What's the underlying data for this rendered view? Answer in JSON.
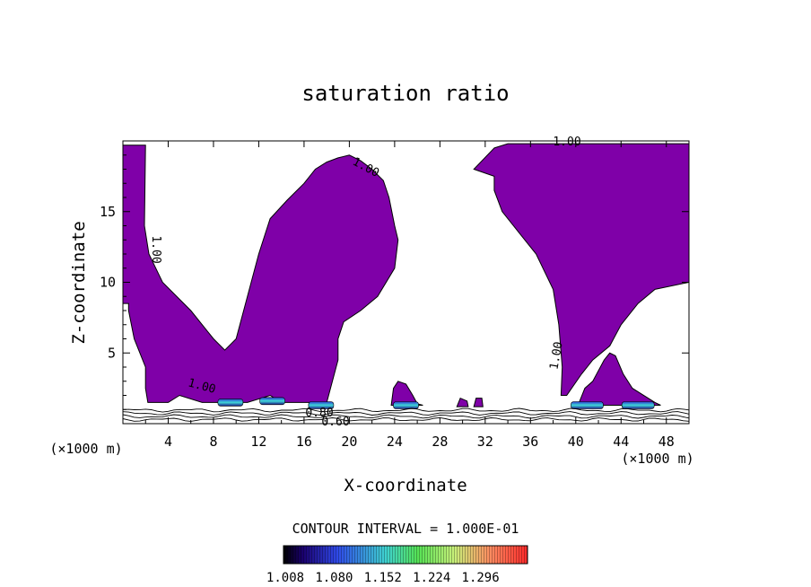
{
  "chart_data": {
    "type": "contour",
    "title": "saturation ratio",
    "xlabel": "X-coordinate",
    "ylabel": "Z-coordinate",
    "x_unit": "(×1000 m)",
    "x_unit_right": "(×1000 m)",
    "xlim": [
      0,
      50
    ],
    "ylim": [
      0,
      20
    ],
    "x_ticks": [
      "4",
      "8",
      "12",
      "16",
      "20",
      "24",
      "28",
      "32",
      "36",
      "40",
      "44",
      "48"
    ],
    "y_ticks": [
      "5",
      "10",
      "15"
    ],
    "contour_labels": [
      "1.00",
      "1.00",
      "1.00",
      "1.00",
      "1.00",
      "1.00",
      "0.80",
      "0.60"
    ],
    "footer": "CONTOUR INTERVAL = 1.000E-01",
    "colorbar": {
      "ticks": [
        "1.008",
        "1.080",
        "1.152",
        "1.224",
        "1.296"
      ],
      "min": 1.008,
      "max": 1.296
    },
    "fill_color": "#7f00a8",
    "regions": [
      {
        "name": "left-cloud",
        "points": [
          [
            0,
            19.7
          ],
          [
            2,
            19.7
          ],
          [
            1.9,
            14
          ],
          [
            2.3,
            12
          ],
          [
            3.5,
            10
          ],
          [
            6,
            8
          ],
          [
            7.5,
            6.5
          ],
          [
            8,
            6
          ],
          [
            9,
            5.2
          ],
          [
            10,
            6
          ],
          [
            11,
            9
          ],
          [
            12,
            12
          ],
          [
            13,
            14.5
          ],
          [
            14.5,
            15.8
          ],
          [
            16,
            17
          ],
          [
            17,
            18
          ],
          [
            18,
            18.5
          ],
          [
            19,
            18.8
          ],
          [
            20,
            19
          ],
          [
            21,
            18.6
          ],
          [
            22,
            18
          ],
          [
            23,
            17.2
          ],
          [
            23.5,
            16
          ],
          [
            24,
            14
          ],
          [
            24.3,
            13
          ],
          [
            24,
            11
          ],
          [
            22.5,
            9
          ],
          [
            21,
            8
          ],
          [
            19.5,
            7.2
          ],
          [
            19,
            6
          ],
          [
            19,
            4.5
          ],
          [
            18.5,
            3
          ],
          [
            18,
            1.5
          ],
          [
            14,
            1.5
          ],
          [
            13,
            2
          ],
          [
            11,
            1.5
          ],
          [
            9,
            1.5
          ],
          [
            7,
            1.5
          ],
          [
            5,
            2
          ],
          [
            4,
            1.5
          ],
          [
            2.2,
            1.5
          ],
          [
            2,
            2.5
          ],
          [
            2,
            4
          ],
          [
            1,
            6
          ],
          [
            0.5,
            8
          ],
          [
            0.5,
            8.5
          ],
          [
            0,
            8.5
          ]
        ]
      },
      {
        "name": "right-cloud",
        "points": [
          [
            32.8,
            19.5
          ],
          [
            34,
            19.8
          ],
          [
            38,
            19.8
          ],
          [
            42,
            19.8
          ],
          [
            46,
            19.8
          ],
          [
            50,
            19.8
          ],
          [
            50,
            10
          ],
          [
            47,
            9.5
          ],
          [
            45.5,
            8.5
          ],
          [
            44,
            7
          ],
          [
            43,
            5.5
          ],
          [
            41.5,
            4.5
          ],
          [
            40.5,
            3.5
          ],
          [
            39.2,
            2
          ],
          [
            38.7,
            2
          ],
          [
            38.8,
            4
          ],
          [
            38.5,
            7
          ],
          [
            38,
            9.5
          ],
          [
            36.5,
            12
          ],
          [
            35,
            13.5
          ],
          [
            33.5,
            15
          ],
          [
            32.8,
            16.5
          ],
          [
            32.8,
            17.5
          ],
          [
            31,
            18
          ]
        ]
      },
      {
        "name": "lower-right-cell",
        "points": [
          [
            40.2,
            1.3
          ],
          [
            40.8,
            2.5
          ],
          [
            41.5,
            3
          ],
          [
            42.5,
            4.5
          ],
          [
            43,
            5
          ],
          [
            43.5,
            4.8
          ],
          [
            44.2,
            3.5
          ],
          [
            45,
            2.5
          ],
          [
            47,
            1.5
          ],
          [
            47.5,
            1.3
          ]
        ]
      },
      {
        "name": "cell-24",
        "points": [
          [
            23.7,
            1.3
          ],
          [
            23.9,
            2.5
          ],
          [
            24.3,
            3
          ],
          [
            25,
            2.8
          ],
          [
            25.6,
            2
          ],
          [
            26,
            1.4
          ],
          [
            26.5,
            1.3
          ]
        ]
      },
      {
        "name": "cell-30",
        "points": [
          [
            29.5,
            1.2
          ],
          [
            29.8,
            1.8
          ],
          [
            30.4,
            1.6
          ],
          [
            30.5,
            1.2
          ]
        ]
      },
      {
        "name": "cell-31",
        "points": [
          [
            31,
            1.2
          ],
          [
            31.2,
            1.8
          ],
          [
            31.7,
            1.8
          ],
          [
            31.8,
            1.2
          ]
        ]
      }
    ],
    "colored_patches": [
      {
        "x": 9.5,
        "z": 1.5,
        "value": 1.18
      },
      {
        "x": 13.2,
        "z": 1.6,
        "value": 1.2
      },
      {
        "x": 17.5,
        "z": 1.3,
        "value": 1.05
      },
      {
        "x": 25,
        "z": 1.3,
        "value": 1.1
      },
      {
        "x": 41,
        "z": 1.3,
        "value": 1.12
      },
      {
        "x": 45.5,
        "z": 1.3,
        "value": 1.06
      }
    ],
    "surface_contours": [
      0.9,
      0.8,
      0.7,
      0.6
    ]
  }
}
